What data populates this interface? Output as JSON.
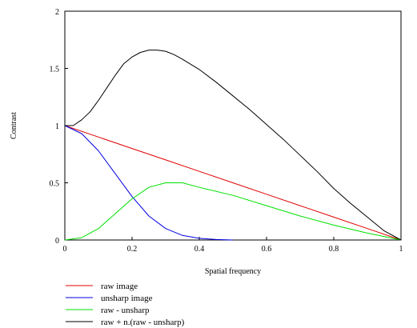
{
  "chart_data": {
    "type": "line",
    "title": "",
    "xlabel": "Spatial frequency",
    "ylabel": "Contrast",
    "xlim": [
      0,
      1
    ],
    "ylim": [
      0,
      2
    ],
    "x_ticks": [
      0,
      0.2,
      0.4,
      0.6,
      0.8,
      1
    ],
    "x_tick_labels": [
      "0",
      "0.2",
      "0.4",
      "0.6",
      "0.8",
      "1"
    ],
    "y_ticks": [
      0,
      0.5,
      1,
      1.5,
      2
    ],
    "y_tick_labels": [
      "0",
      "0.5",
      "1",
      "1.5",
      "2"
    ],
    "grid": false,
    "legend_position": "bottom-left",
    "series": [
      {
        "name": "raw image",
        "color": "#e00000",
        "x": [
          0,
          0.1,
          0.2,
          0.3,
          0.4,
          0.5,
          0.6,
          0.7,
          0.8,
          0.9,
          1.0
        ],
        "y": [
          1.0,
          0.9,
          0.8,
          0.7,
          0.6,
          0.5,
          0.4,
          0.3,
          0.2,
          0.1,
          0.0
        ]
      },
      {
        "name": "unsharp image",
        "color": "#0000e0",
        "x": [
          0,
          0.05,
          0.1,
          0.15,
          0.2,
          0.25,
          0.3,
          0.35,
          0.4,
          0.45,
          0.5
        ],
        "y": [
          1.0,
          0.93,
          0.78,
          0.58,
          0.38,
          0.21,
          0.1,
          0.04,
          0.015,
          0.004,
          0.0
        ]
      },
      {
        "name": "raw - unsharp",
        "color": "#00e000",
        "x": [
          0,
          0.05,
          0.1,
          0.15,
          0.2,
          0.25,
          0.3,
          0.35,
          0.4,
          0.5,
          0.6,
          0.7,
          0.8,
          0.9,
          1.0
        ],
        "y": [
          0.0,
          0.02,
          0.1,
          0.23,
          0.36,
          0.46,
          0.5,
          0.5,
          0.46,
          0.39,
          0.3,
          0.21,
          0.13,
          0.06,
          0.0
        ]
      },
      {
        "name": "raw + n.(raw - unsharp)",
        "color": "#000000",
        "x": [
          0,
          0.025,
          0.05,
          0.075,
          0.1,
          0.125,
          0.15,
          0.175,
          0.2,
          0.225,
          0.25,
          0.275,
          0.3,
          0.325,
          0.35,
          0.4,
          0.45,
          0.5,
          0.55,
          0.6,
          0.65,
          0.7,
          0.75,
          0.8,
          0.85,
          0.9,
          0.95,
          1.0
        ],
        "y": [
          1.0,
          1.0,
          1.05,
          1.12,
          1.22,
          1.33,
          1.44,
          1.54,
          1.6,
          1.64,
          1.66,
          1.66,
          1.65,
          1.62,
          1.58,
          1.49,
          1.38,
          1.26,
          1.14,
          1.01,
          0.88,
          0.74,
          0.6,
          0.45,
          0.32,
          0.2,
          0.08,
          0.0
        ]
      }
    ]
  }
}
